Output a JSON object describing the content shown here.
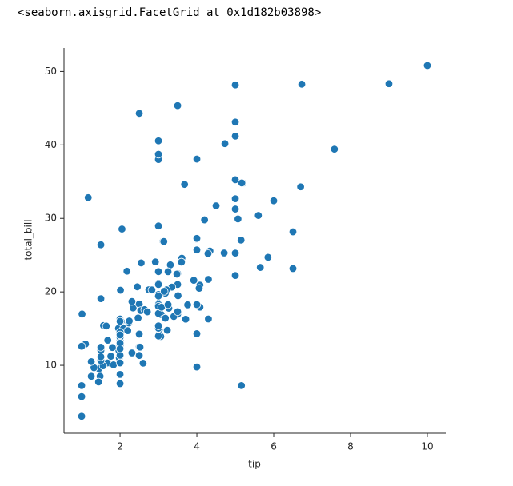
{
  "output_text": "<seaborn.axisgrid.FacetGrid at 0x1d182b03898>",
  "chart_data": {
    "type": "scatter",
    "x_label": "tip",
    "y_label": "total_bill",
    "color": "#1f77b4",
    "xlim": [
      0.54,
      10.48
    ],
    "ylim": [
      0.76,
      53.2
    ],
    "xticks": [
      2,
      4,
      6,
      8,
      10
    ],
    "yticks": [
      10,
      20,
      30,
      40,
      50
    ],
    "grid": false,
    "x": [
      1.01,
      1.66,
      3.5,
      3.31,
      3.61,
      4.71,
      2,
      3.12,
      1.96,
      3.23,
      1.71,
      5,
      1.57,
      3,
      3.02,
      3.92,
      1.67,
      3.71,
      3.5,
      3.35,
      4.08,
      2.75,
      2.23,
      7.58,
      3.18,
      2.34,
      2,
      2,
      4.3,
      3,
      1.45,
      2.5,
      3,
      2.45,
      3.27,
      3.6,
      2,
      3.07,
      2.31,
      5,
      2.24,
      2.54,
      3.06,
      1.32,
      5.6,
      3,
      5,
      6,
      2.05,
      3,
      2.5,
      2.6,
      5.2,
      1.56,
      4.34,
      3.51,
      3,
      1.5,
      1.76,
      6.73,
      3.21,
      2,
      1.98,
      3.76,
      2.64,
      3.15,
      2.47,
      1,
      2.01,
      2.09,
      1.97,
      3,
      3.14,
      5,
      2.2,
      1.25,
      3.08,
      4,
      3,
      2.71,
      3,
      3.4,
      1.83,
      5,
      2.03,
      5.17,
      2,
      4,
      5.85,
      3,
      3,
      3.5,
      1,
      4.3,
      3.25,
      4.73,
      4,
      1.5,
      3,
      1.5,
      2.5,
      3,
      2.5,
      3.48,
      4.08,
      1.64,
      4.06,
      4.29,
      3.76,
      4,
      3,
      1,
      4,
      2.55,
      4,
      3.5,
      5.07,
      1.5,
      1.8,
      2.92,
      2.31,
      1.68,
      2.5,
      2,
      2.52,
      4.2,
      1.48,
      2,
      2,
      2.18,
      1.5,
      2.83,
      1.5,
      2,
      3.25,
      1.25,
      2,
      2,
      2,
      6.7,
      5,
      5.15,
      3.18,
      5,
      9,
      10,
      3.5,
      5,
      3,
      3,
      4,
      5.16,
      6.5,
      6.5,
      5.65,
      4.5,
      3.68,
      1.1,
      1.17,
      1,
      1.44,
      2
    ],
    "y": [
      16.99,
      10.34,
      21.01,
      23.68,
      24.59,
      25.29,
      8.77,
      26.88,
      15.04,
      14.78,
      10.27,
      35.26,
      15.42,
      18.43,
      14.83,
      21.58,
      10.33,
      16.29,
      16.97,
      20.65,
      17.92,
      20.29,
      15.77,
      39.42,
      19.82,
      17.81,
      13.37,
      12.69,
      21.7,
      19.65,
      9.55,
      18.35,
      15.06,
      20.69,
      17.78,
      24.06,
      16.31,
      16.93,
      18.69,
      31.27,
      16.04,
      17.46,
      13.94,
      9.68,
      30.4,
      18.29,
      22.23,
      32.4,
      28.55,
      18.04,
      12.54,
      10.29,
      34.81,
      9.94,
      25.56,
      19.49,
      38.01,
      26.41,
      11.24,
      48.27,
      20.29,
      13.81,
      11.02,
      18.29,
      17.59,
      20.08,
      16.45,
      3.07,
      20.23,
      15.01,
      12.02,
      17.07,
      26.86,
      25.28,
      14.73,
      10.51,
      17.92,
      27.2,
      22.76,
      17.29,
      19.44,
      16.66,
      10.07,
      32.68,
      15.98,
      34.83,
      13.03,
      18.28,
      24.71,
      21.16,
      28.97,
      22.49,
      5.75,
      16.32,
      22.75,
      40.17,
      27.28,
      12.03,
      21.01,
      12.46,
      11.35,
      15.38,
      44.3,
      22.42,
      20.92,
      15.36,
      20.49,
      25.21,
      18.24,
      14.31,
      14,
      7.25,
      38.07,
      23.95,
      25.71,
      17.31,
      29.93,
      10.65,
      12.43,
      24.08,
      11.69,
      13.42,
      14.26,
      15.95,
      12.48,
      29.8,
      8.52,
      14.52,
      11.38,
      22.82,
      19.08,
      20.27,
      11.17,
      12.26,
      18.26,
      8.51,
      10.33,
      14.15,
      16,
      34.3,
      41.19,
      27.05,
      16.43,
      48.17,
      48.33,
      50.81,
      45.35,
      43.11,
      40.55,
      38.73,
      9.78,
      7.25,
      28.17,
      23.17,
      23.33,
      31.71,
      34.63,
      12.9,
      32.83,
      12.6,
      7.74,
      7.51
    ]
  }
}
